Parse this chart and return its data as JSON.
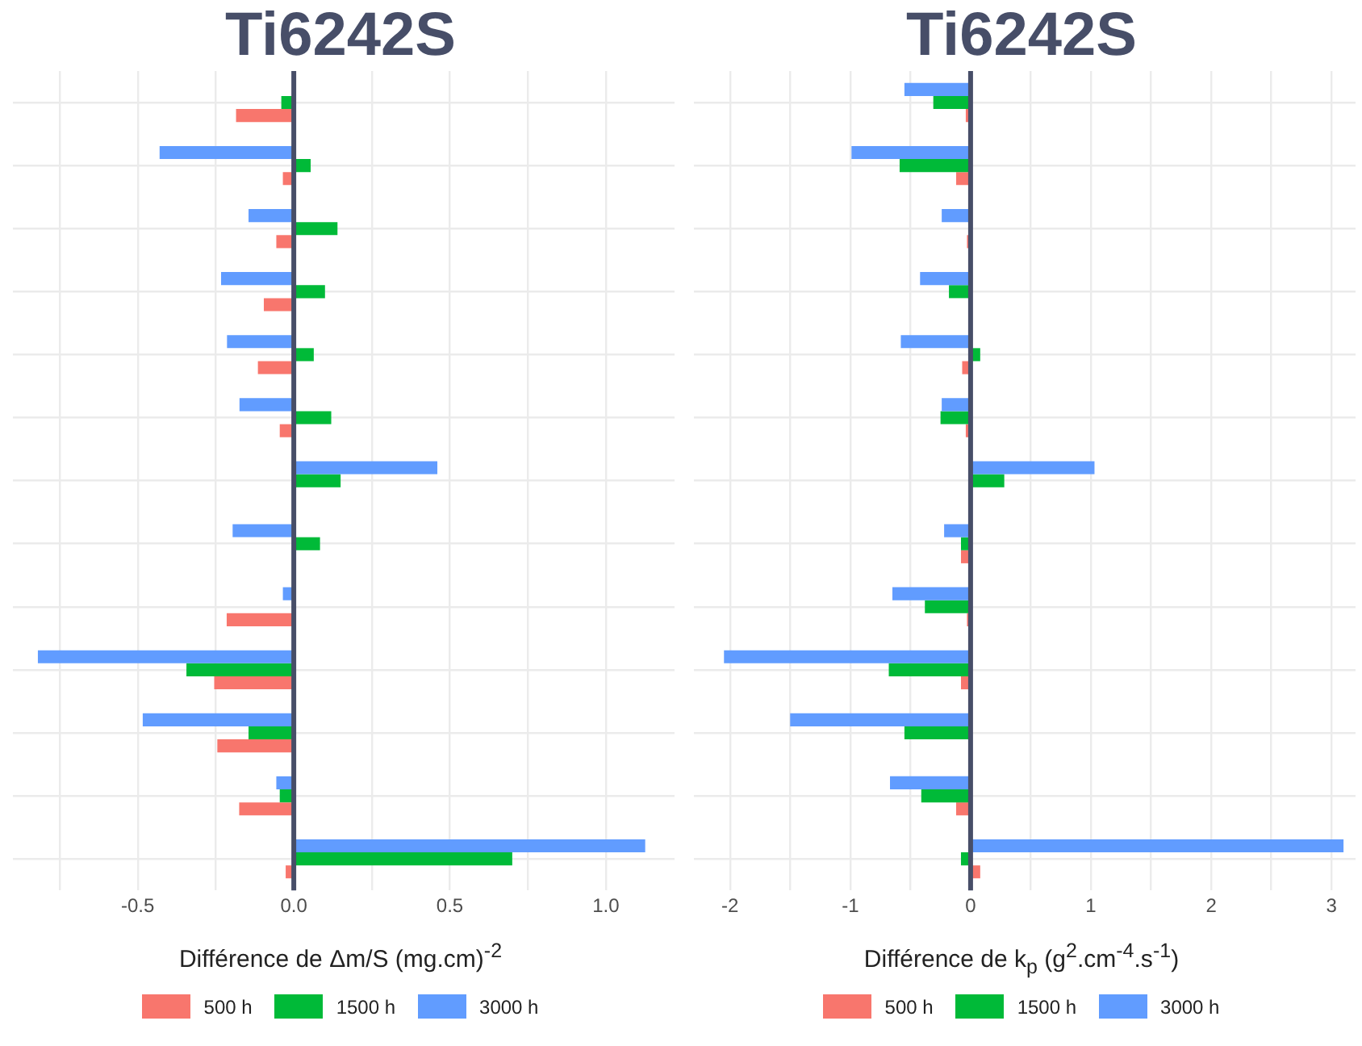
{
  "chart_data": [
    {
      "type": "bar",
      "title": "Ti6242S",
      "orientation": "horizontal",
      "xlabel": "Différence de Δm/S (mg.cm)$^{-2}$",
      "categories": [
        null,
        null,
        null,
        null,
        null,
        null,
        null,
        null,
        null,
        null,
        null,
        null,
        null
      ],
      "series": [
        {
          "name": "500 h",
          "color": "#f8766d",
          "values": [
            -0.185,
            -0.035,
            -0.056,
            -0.096,
            -0.115,
            -0.045,
            null,
            null,
            -0.215,
            -0.255,
            -0.245,
            -0.175,
            -0.026
          ]
        },
        {
          "name": "1500 h",
          "color": "#00ba38",
          "values": [
            -0.04,
            0.054,
            0.14,
            0.1,
            0.064,
            0.12,
            0.15,
            0.084,
            null,
            -0.344,
            -0.145,
            -0.045,
            0.7
          ]
        },
        {
          "name": "3000 h",
          "color": "#619cff",
          "values": [
            null,
            -0.43,
            -0.145,
            -0.233,
            -0.214,
            -0.174,
            0.46,
            -0.196,
            -0.035,
            -0.82,
            -0.484,
            -0.056,
            1.126
          ]
        }
      ],
      "xlim": [
        -0.9,
        1.22
      ],
      "xticks": [
        {
          "value": -0.75,
          "label": null
        },
        -0.5,
        {
          "value": -0.25,
          "label": null
        },
        {
          "value": 0,
          "label": "0.0"
        },
        {
          "value": 0.25,
          "label": null
        },
        0.5,
        {
          "value": 0.75,
          "label": null
        },
        {
          "value": 1,
          "label": "1.0"
        }
      ],
      "ref_lines": [
        {
          "axis": "x",
          "value": 0,
          "color": "#474e68"
        }
      ],
      "grid": true,
      "legend": "bottom",
      "tick_labels": "x"
    },
    {
      "type": "bar",
      "title": "Ti6242S",
      "orientation": "horizontal",
      "xlabel": "Différence de k$_{p}$ (g$^{2}$.cm$^{-4}$.s$^{-1}$)",
      "categories": [
        null,
        null,
        null,
        null,
        null,
        null,
        null,
        null,
        null,
        null,
        null,
        null,
        null
      ],
      "series": [
        {
          "name": "500 h",
          "color": "#f8766d",
          "values": [
            -0.04,
            -0.12,
            -0.03,
            null,
            -0.07,
            -0.04,
            null,
            -0.08,
            -0.03,
            -0.08,
            null,
            -0.12,
            0.08
          ]
        },
        {
          "name": "1500 h",
          "color": "#00ba38",
          "values": [
            -0.31,
            -0.59,
            null,
            -0.18,
            0.08,
            -0.25,
            0.28,
            -0.08,
            -0.38,
            -0.68,
            -0.55,
            -0.41,
            -0.08
          ]
        },
        {
          "name": "3000 h",
          "color": "#619cff",
          "values": [
            -0.55,
            -0.99,
            -0.24,
            -0.42,
            -0.58,
            -0.24,
            1.03,
            -0.22,
            -0.65,
            -2.05,
            -1.5,
            -0.67,
            3.1
          ]
        }
      ],
      "xlim": [
        -2.3,
        3.2
      ],
      "xticks": [
        -2,
        {
          "value": -1.5,
          "label": null
        },
        -1,
        {
          "value": -0.5,
          "label": null
        },
        0,
        {
          "value": 0.5,
          "label": null
        },
        1,
        {
          "value": 1.5,
          "label": null
        },
        2,
        {
          "value": 2.5,
          "label": null
        },
        3
      ],
      "ref_lines": [
        {
          "axis": "x",
          "value": 0,
          "color": "#474e68"
        }
      ],
      "grid": true,
      "legend": "bottom",
      "tick_labels": "x"
    }
  ]
}
